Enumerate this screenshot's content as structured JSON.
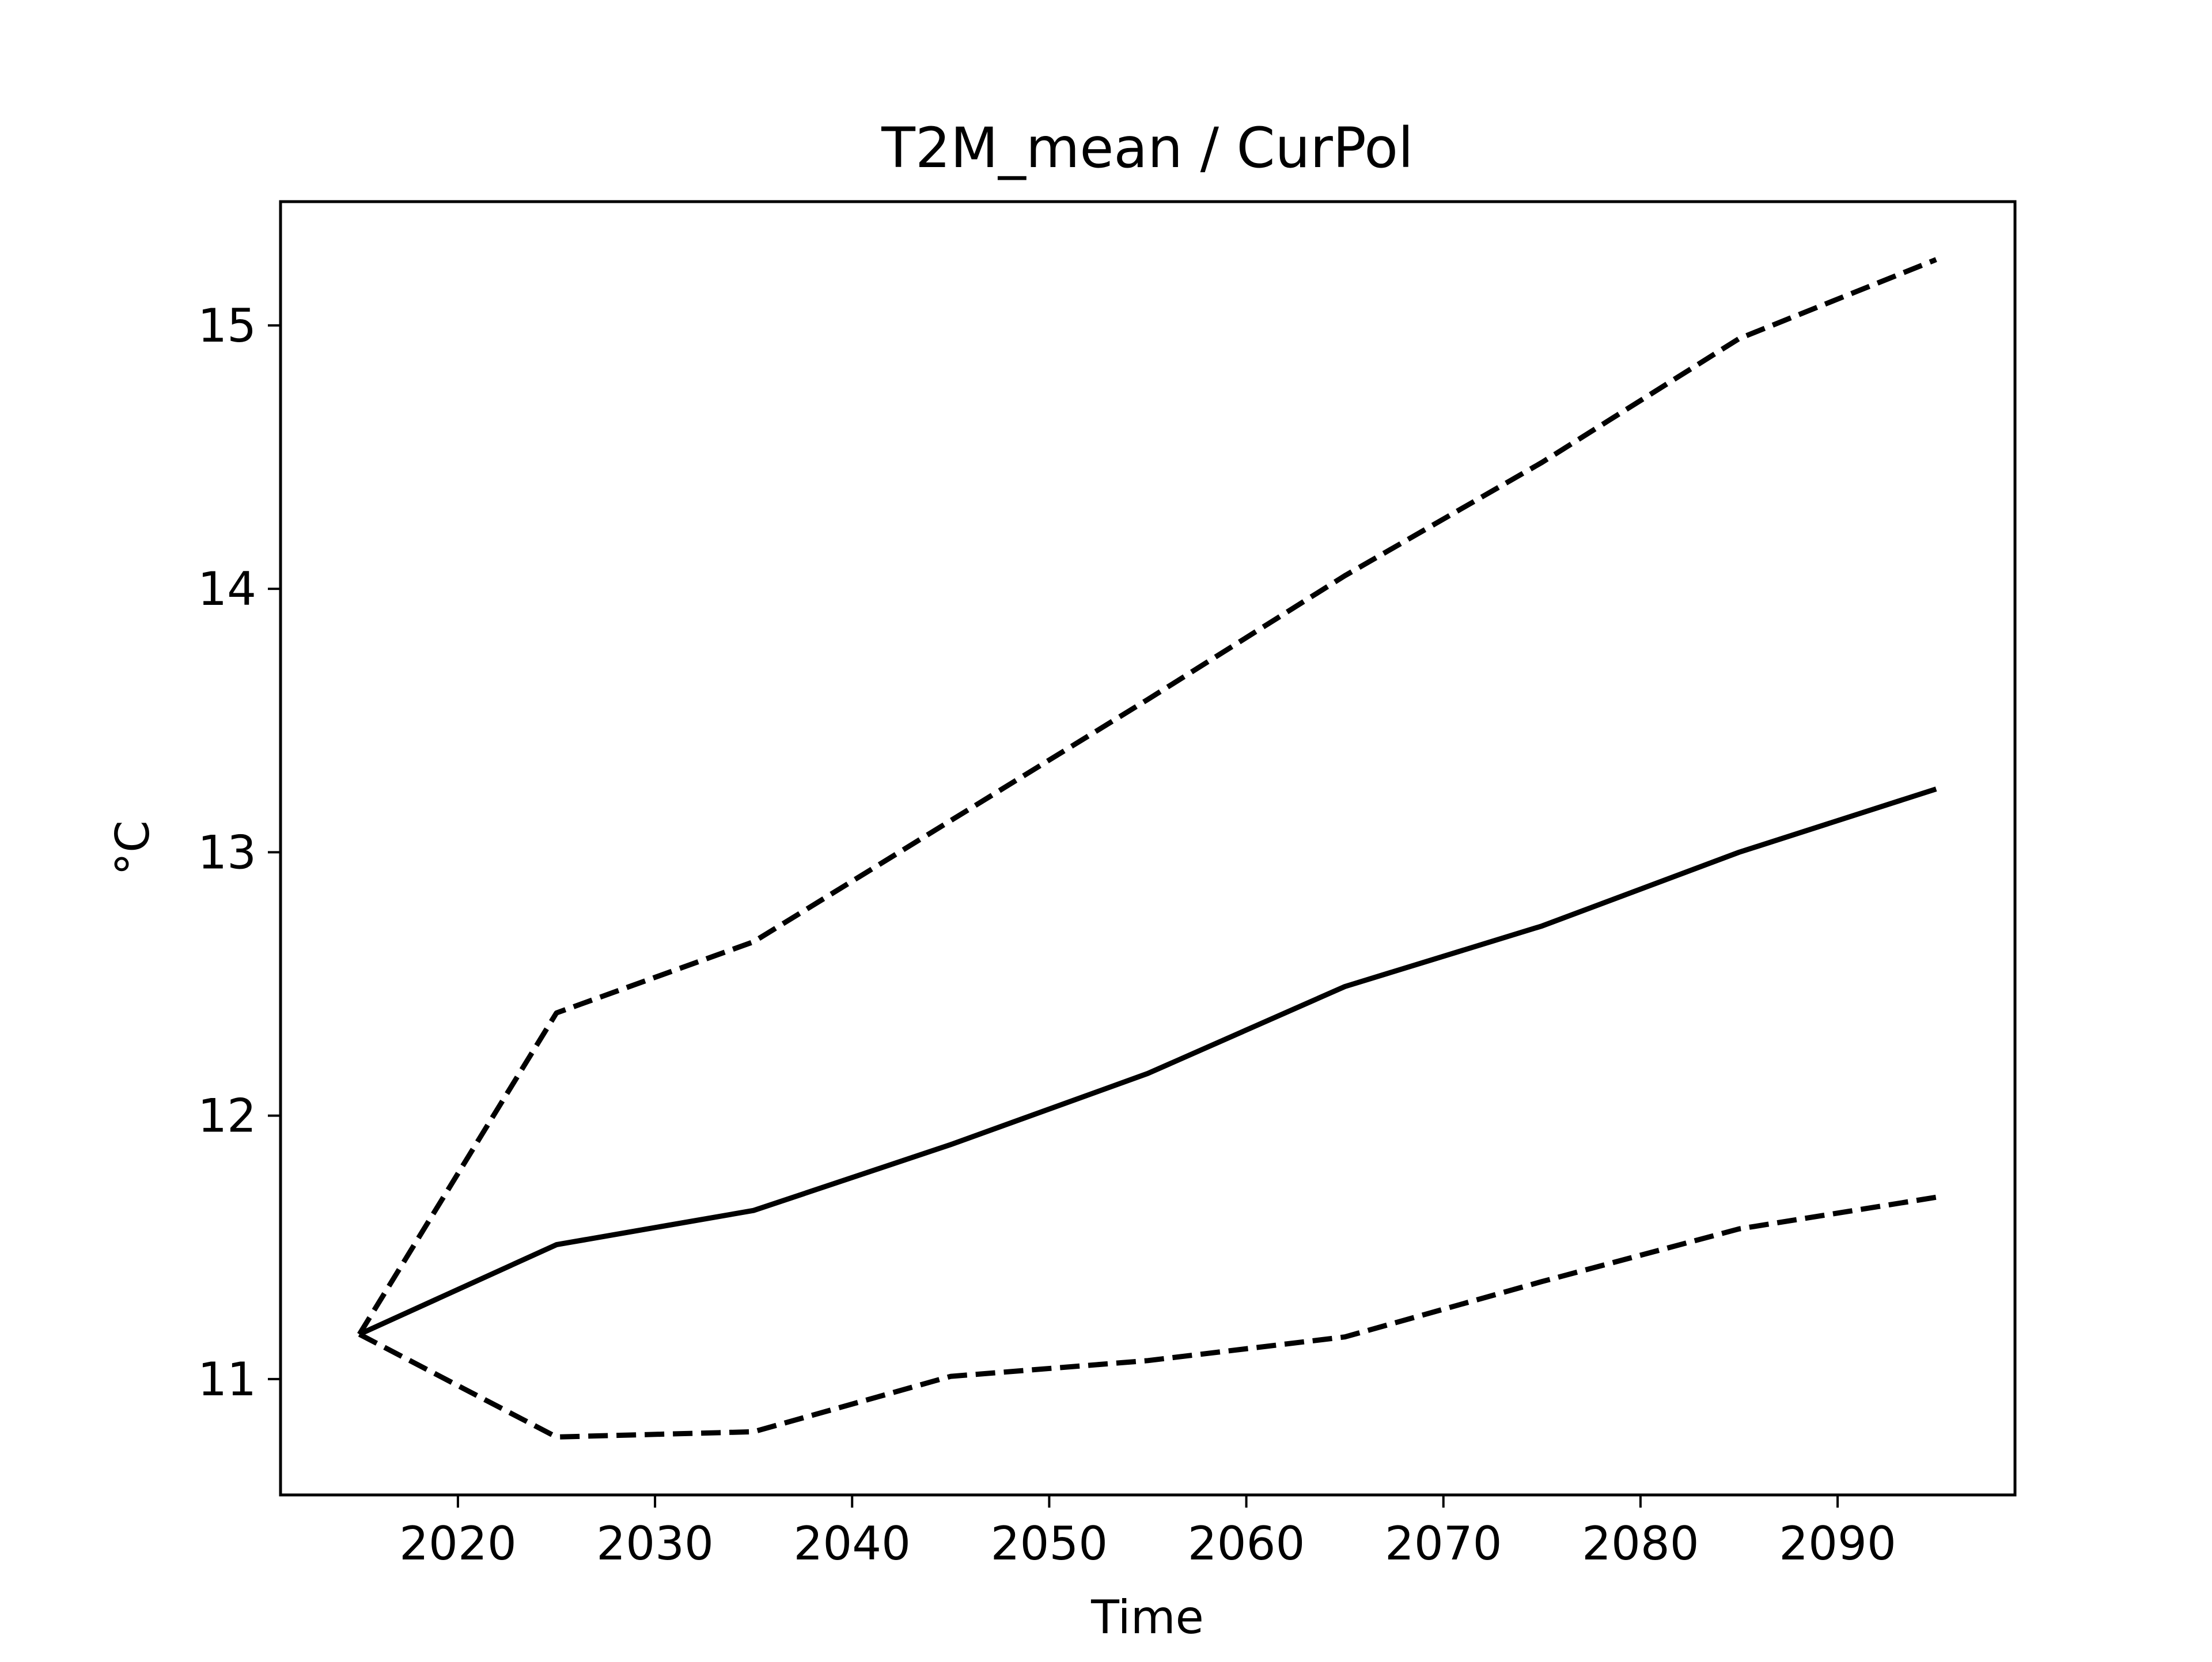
{
  "chart_data": {
    "type": "line",
    "title": "T2M_mean / CurPol",
    "xlabel": "Time",
    "ylabel": "°C",
    "xlim": [
      2011,
      2099
    ],
    "ylim": [
      10.56,
      15.47
    ],
    "grid": false,
    "legend": "none",
    "x_ticks": [
      2020,
      2030,
      2040,
      2050,
      2060,
      2070,
      2080,
      2090
    ],
    "y_ticks": [
      11,
      12,
      13,
      14,
      15
    ],
    "x_tick_labels": [
      "2020",
      "2030",
      "2040",
      "2050",
      "2060",
      "2070",
      "2080",
      "2090"
    ],
    "y_tick_labels": [
      "11",
      "12",
      "13",
      "14",
      "15"
    ],
    "x": [
      2015,
      2025,
      2035,
      2045,
      2055,
      2065,
      2075,
      2085,
      2095
    ],
    "series": [
      {
        "style": "solid",
        "color": "#000000",
        "values": [
          11.17,
          11.51,
          11.64,
          11.89,
          12.16,
          12.49,
          12.72,
          13.0,
          13.24
        ]
      },
      {
        "style": "dashed",
        "color": "#000000",
        "values": [
          11.17,
          12.39,
          12.66,
          13.12,
          13.58,
          14.05,
          14.48,
          14.95,
          15.25
        ]
      },
      {
        "style": "dashed",
        "color": "#000000",
        "values": [
          11.17,
          10.78,
          10.8,
          11.01,
          11.07,
          11.16,
          11.37,
          11.57,
          11.69
        ]
      }
    ]
  }
}
